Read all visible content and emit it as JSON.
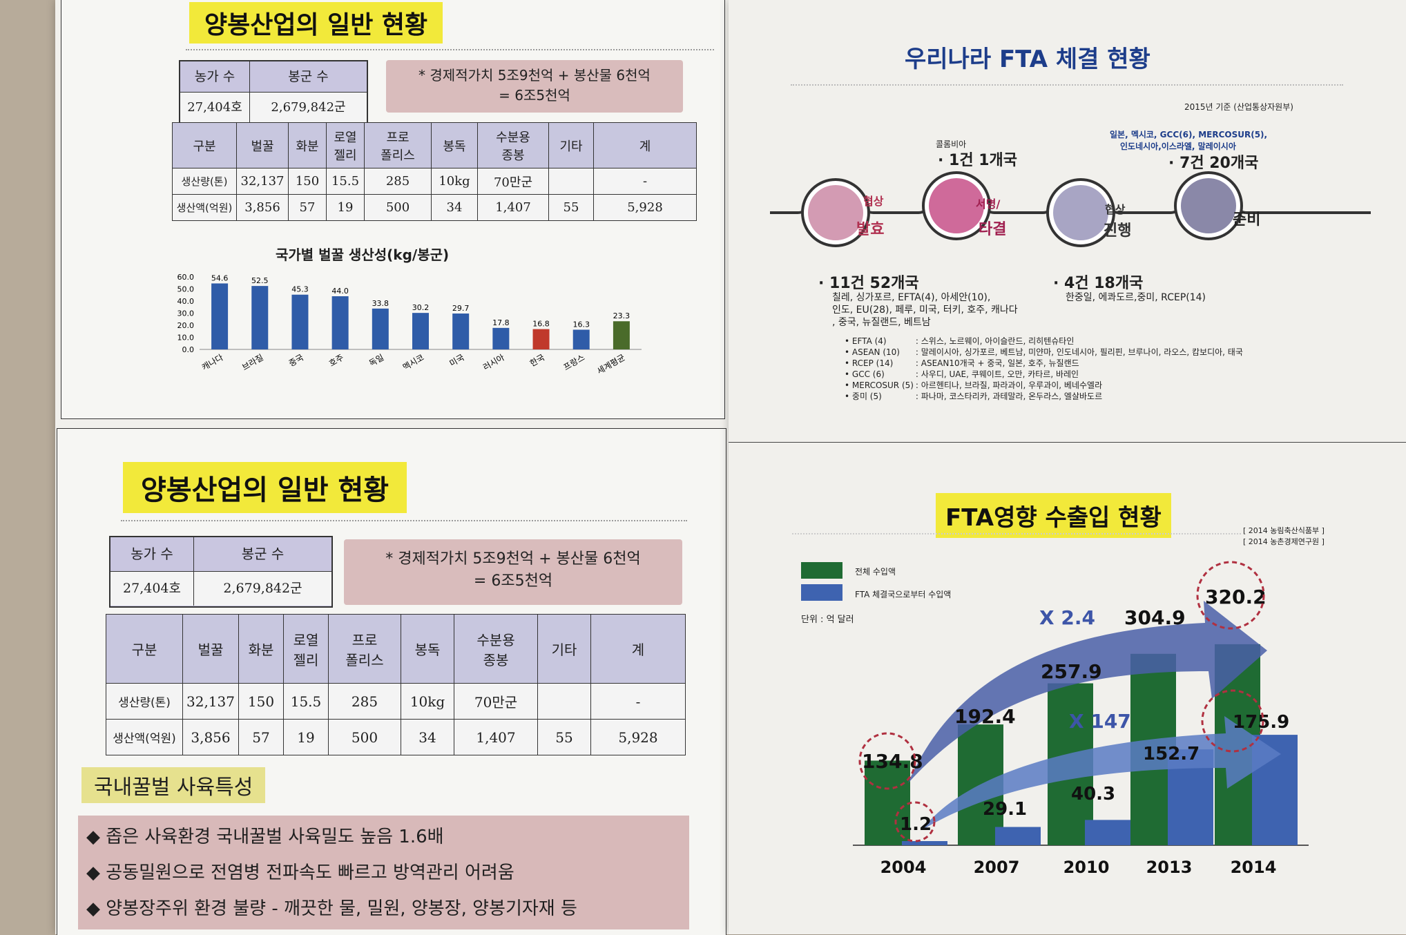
{
  "left_top": {
    "title": "양봉산업의 일반 현황",
    "stats_header": [
      "농가 수",
      "봉군 수"
    ],
    "stats_values": [
      "27,404호",
      "2,679,842군"
    ],
    "value_note_line1": "* 경제적가치  5조9천억 + 봉산물 6천억",
    "value_note_line2": "= 6조5천억",
    "table_header": [
      "구분",
      "벌꿀",
      "화분",
      "로열\n젤리",
      "프로\n폴리스",
      "봉독",
      "수분용\n종봉",
      "기타",
      "계"
    ],
    "table_rows": [
      [
        "생산량(톤)",
        "32,137",
        "150",
        "15.5",
        "285",
        "10kg",
        "70만군",
        "",
        "-"
      ],
      [
        "생산액(억원)",
        "3,856",
        "57",
        "19",
        "500",
        "34",
        "1,407",
        "55",
        "5,928"
      ]
    ]
  },
  "chart_title": "국가별 벌꿀 생산성(kg/봉군)",
  "chart_data": {
    "type": "bar",
    "title": "국가별 벌꿀 생산성(kg/봉군)",
    "categories": [
      "캐나다",
      "브라질",
      "중국",
      "호주",
      "독일",
      "멕시코",
      "미국",
      "러시아",
      "한국",
      "프랑스",
      "세계평균"
    ],
    "values": [
      54.6,
      52.5,
      45.3,
      44.0,
      33.8,
      30.2,
      29.7,
      17.8,
      16.8,
      16.3,
      23.3
    ],
    "value_labels": [
      "54.6",
      "52.5",
      "45.3",
      "44.0",
      "33.8",
      "30.2",
      "29.7",
      "17.8",
      "16.8",
      "16.3",
      "23.3"
    ],
    "ylim": [
      0,
      60
    ],
    "yticks": [
      "60.0",
      "50.0",
      "40.0",
      "30.0",
      "20.0",
      "10.0",
      "0.0"
    ],
    "colors": [
      "#2f5ca8",
      "#2f5ca8",
      "#2f5ca8",
      "#2f5ca8",
      "#2f5ca8",
      "#2f5ca8",
      "#2f5ca8",
      "#2f5ca8",
      "#c0392b",
      "#2f5ca8",
      "#4a6b2a"
    ],
    "xlabel": "",
    "ylabel": "",
    "grid": false
  },
  "fta_status": {
    "title": "우리나라 FTA 체결 현황",
    "basis": "2015년 기준 (산업통상자원부)",
    "stages": [
      "발효",
      "타결",
      "진행",
      "준비"
    ],
    "stage_small": [
      "협상",
      "서명/",
      "협상",
      ""
    ],
    "top_left_small": "콜롬비아",
    "top_left_count": "· 1건 1개국",
    "top_right_small1": "일본, 멕시코, GCC(6), MERCOSUR(5),",
    "top_right_small2": "인도네시아,이스라엘, 말레이시아",
    "top_right_count": "· 7건 20개국",
    "bottom_left_count": "· 11건 52개국",
    "bottom_left_list1": "칠레, 싱가포르, EFTA(4), 아세안(10),",
    "bottom_left_list2": "인도, EU(28), 페루, 미국, 터키, 호주, 캐나다",
    "bottom_left_list3": ", 중국, 뉴질랜드, 베트남",
    "bottom_right_count": "· 4건 18개국",
    "bottom_right_list": "한중일, 에콰도르,중미, RCEP(14)",
    "details": [
      {
        "k": "EFTA (4)",
        "v": ": 스위스, 노르웨이, 아이슬란드, 리히텐슈타인"
      },
      {
        "k": "ASEAN (10)",
        "v": ": 말레이시아, 싱가포르, 베트남, 미얀마, 인도네시아, 필리핀, 브루나이, 라오스, 캄보디아, 태국"
      },
      {
        "k": "RCEP (14)",
        "v": ": ASEAN10개국 + 중국, 일본, 호주, 뉴질랜드"
      },
      {
        "k": "GCC (6)",
        "v": ": 사우디, UAE, 쿠웨이트, 오만, 카타르, 바레인"
      },
      {
        "k": "MERCOSUR (5)",
        "v": ": 아르헨티나, 브라질, 파라과이, 우루과이, 베네수엘라"
      },
      {
        "k": "중미 (5)",
        "v": ": 파나마, 코스타리카, 과테말라, 온두라스, 엘살바도르"
      }
    ]
  },
  "left_bottom": {
    "title": "양봉산업의 일반 현황",
    "subsection": "국내꿀벌 사육특성",
    "features": [
      "◆ 좁은 사육환경 국내꿀벌 사육밀도 높음 1.6배",
      "◆ 공동밀원으로 전염병 전파속도 빠르고 방역관리 어려움",
      "◆ 양봉장주위 환경 불량 - 깨끗한 물, 밀원, 양봉장, 양봉기자재 등"
    ]
  },
  "fta_trade": {
    "title": "FTA영향 수출입 현황",
    "source1": "[ 2014 농림축산식품부 ]",
    "source2": "[ 2014 농촌경제연구원 ]",
    "legend_total": "전체 수입액",
    "legend_fta": "FTA 체결국으로부터 수입액",
    "unit": "단위 : 억 달러",
    "growth_total": "X 2.4",
    "growth_fta": "X 147",
    "colors": {
      "total": "#1f6b33",
      "fta": "#3e63b0"
    }
  },
  "chart_data_2": {
    "type": "bar",
    "categories": [
      "2004",
      "2007",
      "2010",
      "2013",
      "2014"
    ],
    "series": [
      {
        "name": "전체 수입액",
        "values": [
          134.8,
          192.4,
          257.9,
          304.9,
          320.2
        ]
      },
      {
        "name": "FTA 체결국으로부터 수입액",
        "values": [
          1.2,
          29.1,
          40.3,
          152.7,
          175.9
        ]
      }
    ],
    "labels_total": [
      "134.8",
      "192.4",
      "257.9",
      "304.9",
      "320.2"
    ],
    "labels_fta": [
      "1.2",
      "29.1",
      "40.3",
      "152.7",
      "175.9"
    ],
    "ylim": [
      0,
      330
    ]
  }
}
